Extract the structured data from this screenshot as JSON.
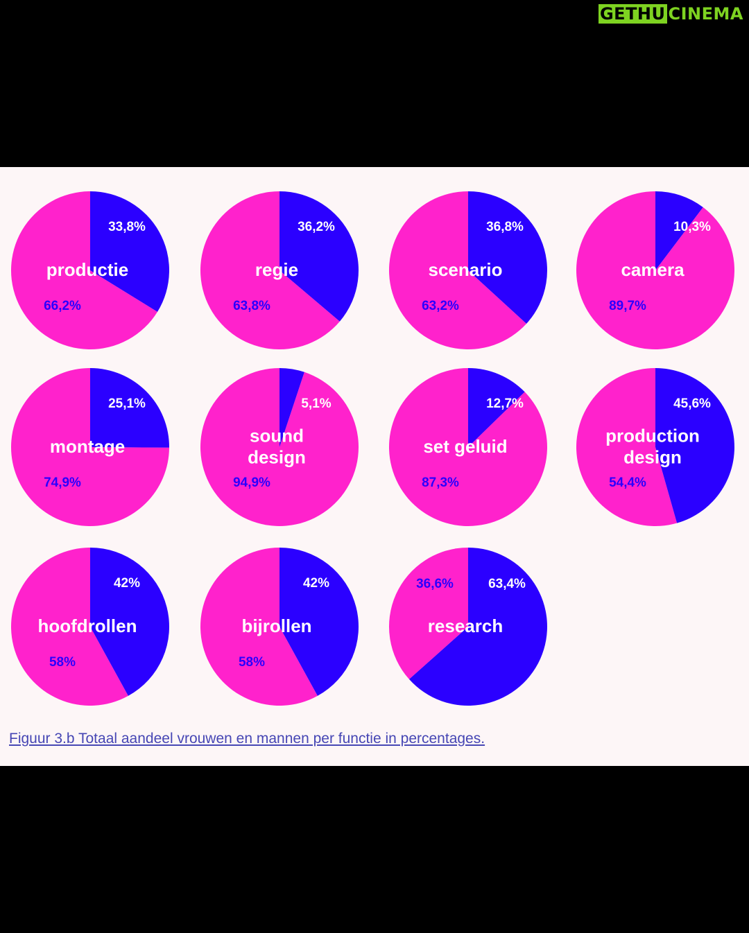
{
  "watermark": {
    "part1": "GETHU",
    "part2": "CINEMA"
  },
  "colors": {
    "women": "#ff22cc",
    "men": "#2b00ff",
    "panel": "#fdf6f7",
    "page": "#000000"
  },
  "caption": "Figuur 3.b Totaal aandeel vrouwen en mannen per functie in percentages.",
  "chart_data": {
    "type": "pie",
    "charts": [
      {
        "label": "productie",
        "men": 33.8,
        "women": 66.2,
        "men_label": "33,8%",
        "women_label": "66,2%"
      },
      {
        "label": "regie",
        "men": 36.2,
        "women": 63.8,
        "men_label": "36,2%",
        "women_label": "63,8%"
      },
      {
        "label": "scenario",
        "men": 36.8,
        "women": 63.2,
        "men_label": "36,8%",
        "women_label": "63,2%"
      },
      {
        "label": "camera",
        "men": 10.3,
        "women": 89.7,
        "men_label": "10,3%",
        "women_label": "89,7%"
      },
      {
        "label": "montage",
        "men": 25.1,
        "women": 74.9,
        "men_label": "25,1%",
        "women_label": "74,9%"
      },
      {
        "label": "sound\ndesign",
        "men": 5.1,
        "women": 94.9,
        "men_label": "5,1%",
        "women_label": "94,9%"
      },
      {
        "label": "set geluid",
        "men": 12.7,
        "women": 87.3,
        "men_label": "12,7%",
        "women_label": "87,3%"
      },
      {
        "label": "production\ndesign",
        "men": 45.6,
        "women": 54.4,
        "men_label": "45,6%",
        "women_label": "54,4%"
      },
      {
        "label": "hoofdrollen",
        "men": 42,
        "women": 58,
        "men_label": "42%",
        "women_label": "58%"
      },
      {
        "label": "bijrollen",
        "men": 42,
        "women": 58,
        "men_label": "42%",
        "women_label": "58%"
      },
      {
        "label": "research",
        "men": 63.4,
        "women": 36.6,
        "men_label": "63,4%",
        "women_label": "36,6%"
      }
    ]
  }
}
